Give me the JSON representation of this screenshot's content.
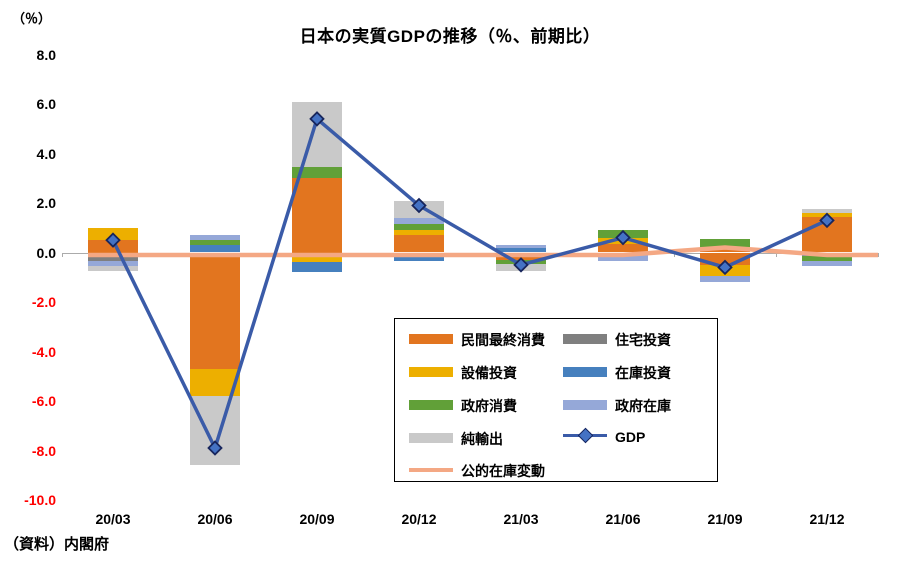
{
  "chart_data": {
    "type": "bar",
    "subtype": "stacked-contribution-bars-with-lines",
    "title": "日本の実質GDPの推移（％、前期比）",
    "unit_label": "（％）",
    "source_note": "（資料）内閣府",
    "categories": [
      "20/03",
      "20/06",
      "20/09",
      "20/12",
      "21/03",
      "21/06",
      "21/09",
      "21/12"
    ],
    "y_axis": {
      "min": -10,
      "max": 8,
      "step": 2,
      "grid": false,
      "negative_label_color": "#FF0000",
      "ticks": [
        {
          "value": 8,
          "label": "8.0"
        },
        {
          "value": 6,
          "label": "6.0"
        },
        {
          "value": 4,
          "label": "4.0"
        },
        {
          "value": 2,
          "label": "2.0"
        },
        {
          "value": 0,
          "label": "0.0"
        },
        {
          "value": -2,
          "label": "-2.0"
        },
        {
          "value": -4,
          "label": "-4.0"
        },
        {
          "value": -6,
          "label": "-6.0"
        },
        {
          "value": -8,
          "label": "-8.0"
        },
        {
          "value": -10,
          "label": "-10.0"
        }
      ]
    },
    "series": {
      "private_consumption": {
        "label": "民間最終消費",
        "color": "#E2751F",
        "kind": "bar"
      },
      "housing": {
        "label": "住宅投資",
        "color": "#7F7F7F",
        "kind": "bar"
      },
      "capex": {
        "label": "設備投資",
        "color": "#EDAF00",
        "kind": "bar"
      },
      "inventory": {
        "label": "在庫投資",
        "color": "#4680BE",
        "kind": "bar"
      },
      "gov_consumption": {
        "label": "政府消費",
        "color": "#61A038",
        "kind": "bar"
      },
      "gov_inventory": {
        "label": "政府在庫",
        "color": "#95A8D8",
        "kind": "bar"
      },
      "net_exports": {
        "label": "純輸出",
        "color": "#C9C9C9",
        "kind": "bar"
      },
      "gdp": {
        "label": "GDP",
        "color": "#3A5BA8",
        "kind": "line-marker"
      },
      "public_inventory_change": {
        "label": "公的在庫変動",
        "color": "#F4A884",
        "kind": "line"
      }
    },
    "bars": [
      {
        "category": "20/03",
        "segments": [
          {
            "series": "private_consumption",
            "value": 0.5
          },
          {
            "series": "capex",
            "value": 0.5
          },
          {
            "series": "housing",
            "value": -0.35
          },
          {
            "series": "gov_inventory",
            "value": -0.2
          },
          {
            "series": "net_exports",
            "value": -0.2
          }
        ]
      },
      {
        "category": "20/06",
        "segments": [
          {
            "series": "inventory",
            "value": 0.3
          },
          {
            "series": "gov_consumption",
            "value": 0.2
          },
          {
            "series": "gov_inventory",
            "value": 0.2
          },
          {
            "series": "private_consumption",
            "value": -4.7
          },
          {
            "series": "capex",
            "value": -1.1
          },
          {
            "series": "net_exports",
            "value": -2.8
          }
        ]
      },
      {
        "category": "20/09",
        "segments": [
          {
            "series": "private_consumption",
            "value": 3.0
          },
          {
            "series": "gov_consumption",
            "value": 0.45
          },
          {
            "series": "net_exports",
            "value": 2.65
          },
          {
            "series": "housing",
            "value": -0.15
          },
          {
            "series": "capex",
            "value": -0.25
          },
          {
            "series": "inventory",
            "value": -0.4
          }
        ]
      },
      {
        "category": "20/12",
        "segments": [
          {
            "series": "private_consumption",
            "value": 0.7
          },
          {
            "series": "capex",
            "value": 0.2
          },
          {
            "series": "gov_consumption",
            "value": 0.25
          },
          {
            "series": "gov_inventory",
            "value": 0.25
          },
          {
            "series": "net_exports",
            "value": 0.7
          },
          {
            "series": "housing",
            "value": -0.1
          },
          {
            "series": "inventory",
            "value": -0.25
          }
        ]
      },
      {
        "category": "21/03",
        "segments": [
          {
            "series": "inventory",
            "value": 0.2
          },
          {
            "series": "gov_inventory",
            "value": 0.1
          },
          {
            "series": "private_consumption",
            "value": -0.3
          },
          {
            "series": "gov_consumption",
            "value": -0.15
          },
          {
            "series": "net_exports",
            "value": -0.3
          }
        ]
      },
      {
        "category": "21/06",
        "segments": [
          {
            "series": "private_consumption",
            "value": 0.35
          },
          {
            "series": "capex",
            "value": 0.25
          },
          {
            "series": "gov_consumption",
            "value": 0.3
          },
          {
            "series": "gov_inventory",
            "value": -0.35
          }
        ]
      },
      {
        "category": "21/09",
        "segments": [
          {
            "series": "private_consumption",
            "value": 0.2
          },
          {
            "series": "gov_consumption",
            "value": 0.35
          },
          {
            "series": "private_consumption",
            "value": -0.5
          },
          {
            "series": "capex",
            "value": -0.45
          },
          {
            "series": "gov_inventory",
            "value": -0.25
          }
        ]
      },
      {
        "category": "21/12",
        "segments": [
          {
            "series": "private_consumption",
            "value": 1.45
          },
          {
            "series": "capex",
            "value": 0.15
          },
          {
            "series": "net_exports",
            "value": 0.15
          },
          {
            "series": "inventory",
            "value": -0.15
          },
          {
            "series": "gov_consumption",
            "value": -0.2
          },
          {
            "series": "gov_inventory",
            "value": -0.2
          }
        ]
      }
    ],
    "lines": [
      {
        "series": "gdp",
        "marker": "diamond",
        "values": [
          0.5,
          -7.9,
          5.4,
          1.9,
          -0.5,
          0.6,
          -0.6,
          1.3
        ]
      },
      {
        "series": "public_inventory_change",
        "marker": "none",
        "values": [
          -0.1,
          -0.1,
          -0.1,
          -0.1,
          -0.1,
          -0.1,
          0.2,
          -0.1
        ]
      }
    ],
    "legend": {
      "position": "inside-bottom-center",
      "columns": [
        [
          "private_consumption",
          "capex",
          "gov_consumption",
          "net_exports",
          "public_inventory_change"
        ],
        [
          "housing",
          "inventory",
          "gov_inventory",
          "gdp"
        ]
      ]
    },
    "marker_style": {
      "fill": "#4472C4",
      "stroke": "#17255C"
    },
    "axis_color": "#ABABAB"
  }
}
